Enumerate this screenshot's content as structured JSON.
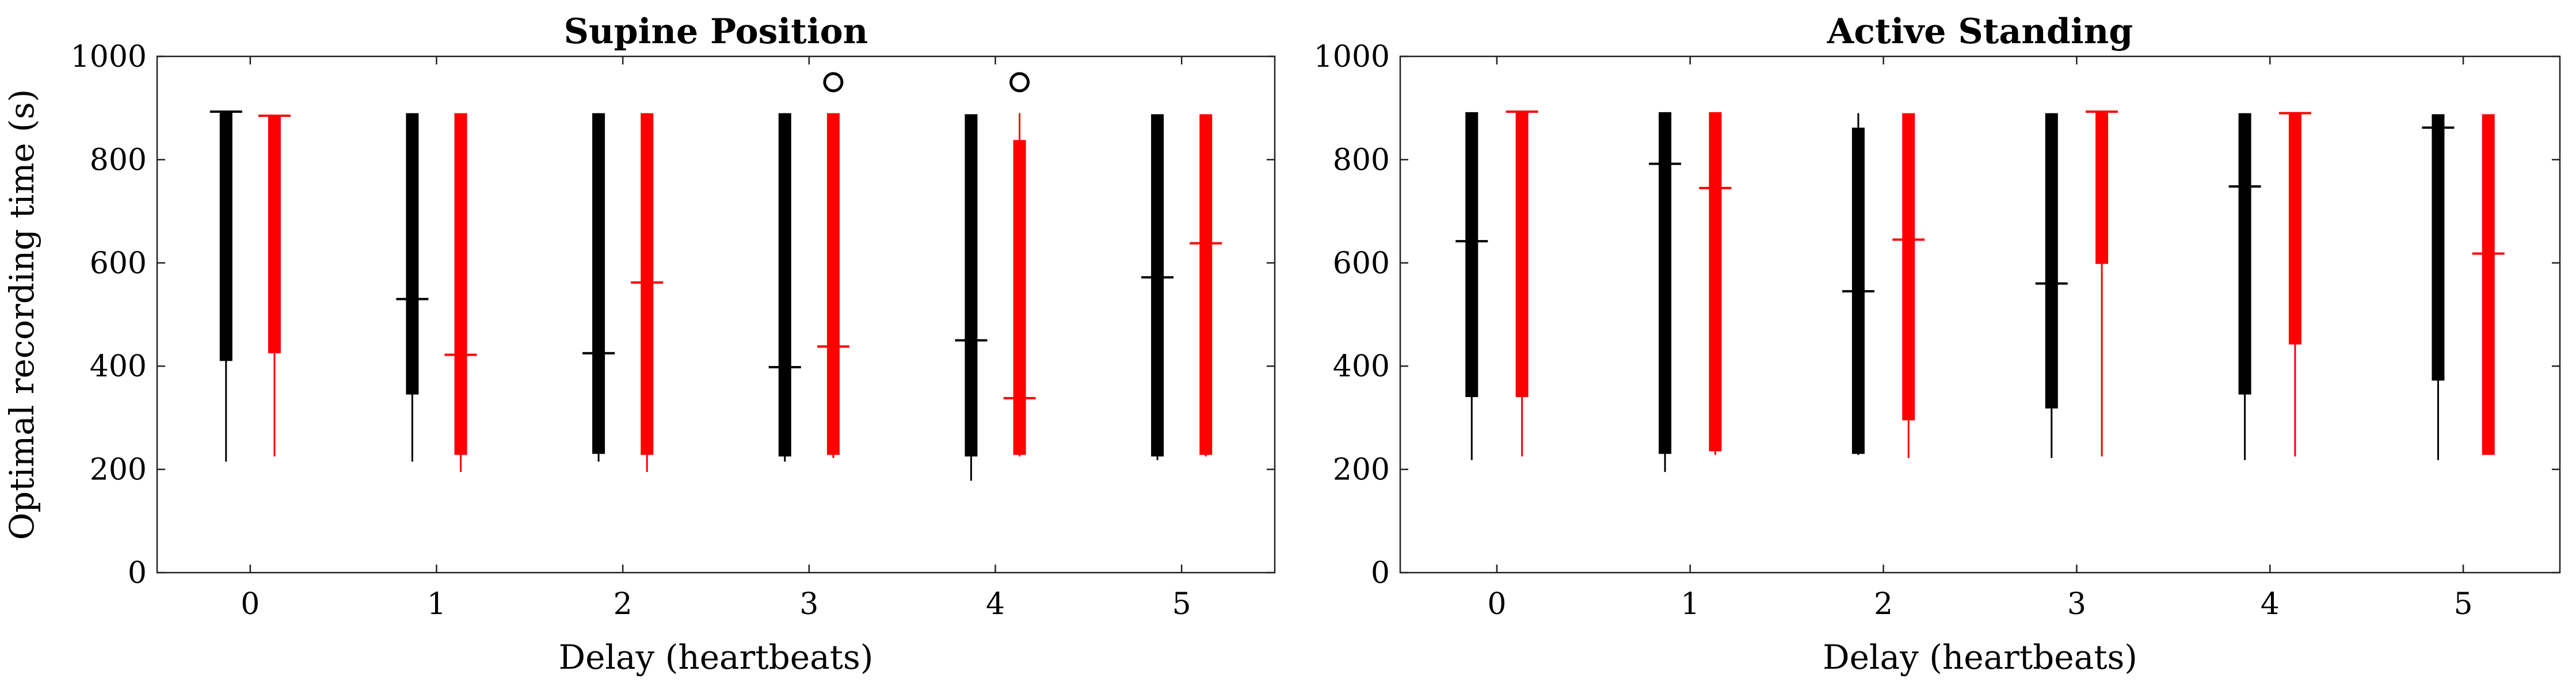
{
  "chart_data": [
    {
      "type": "boxplot",
      "title": "Supine Position",
      "xlabel": "Delay (heartbeats)",
      "ylabel": "Optimal recording time (s)",
      "ylim": [
        0,
        1000
      ],
      "yticks": [
        0,
        200,
        400,
        600,
        800,
        1000
      ],
      "categories": [
        "0",
        "1",
        "2",
        "3",
        "4",
        "5"
      ],
      "grid": false,
      "series": [
        {
          "color": "#000000",
          "boxes": [
            {
              "min": 215,
              "q1": 410,
              "median": 893,
              "q3": 893,
              "max": 893,
              "outliers": []
            },
            {
              "min": 215,
              "q1": 345,
              "median": 530,
              "q3": 890,
              "max": 890,
              "outliers": []
            },
            {
              "min": 215,
              "q1": 230,
              "median": 425,
              "q3": 890,
              "max": 890,
              "outliers": []
            },
            {
              "min": 215,
              "q1": 225,
              "median": 398,
              "q3": 890,
              "max": 890,
              "outliers": []
            },
            {
              "min": 178,
              "q1": 225,
              "median": 450,
              "q3": 888,
              "max": 888,
              "outliers": []
            },
            {
              "min": 218,
              "q1": 225,
              "median": 572,
              "q3": 888,
              "max": 888,
              "outliers": []
            }
          ]
        },
        {
          "color": "#ff0000",
          "boxes": [
            {
              "min": 225,
              "q1": 425,
              "median": 885,
              "q3": 885,
              "max": 885,
              "outliers": []
            },
            {
              "min": 195,
              "q1": 228,
              "median": 422,
              "q3": 890,
              "max": 890,
              "outliers": []
            },
            {
              "min": 195,
              "q1": 228,
              "median": 562,
              "q3": 890,
              "max": 890,
              "outliers": []
            },
            {
              "min": 222,
              "q1": 228,
              "median": 438,
              "q3": 890,
              "max": 890,
              "outliers": [
                950
              ]
            },
            {
              "min": 225,
              "q1": 228,
              "median": 338,
              "q3": 838,
              "max": 890,
              "outliers": [
                950
              ]
            },
            {
              "min": 225,
              "q1": 228,
              "median": 638,
              "q3": 888,
              "max": 888,
              "outliers": []
            }
          ]
        }
      ]
    },
    {
      "type": "boxplot",
      "title": "Active Standing",
      "xlabel": "Delay (heartbeats)",
      "ylabel": "",
      "ylim": [
        0,
        1000
      ],
      "yticks": [
        0,
        200,
        400,
        600,
        800,
        1000
      ],
      "categories": [
        "0",
        "1",
        "2",
        "3",
        "4",
        "5"
      ],
      "grid": false,
      "series": [
        {
          "color": "#000000",
          "boxes": [
            {
              "min": 218,
              "q1": 340,
              "median": 642,
              "q3": 892,
              "max": 892,
              "outliers": []
            },
            {
              "min": 195,
              "q1": 230,
              "median": 792,
              "q3": 892,
              "max": 892,
              "outliers": []
            },
            {
              "min": 228,
              "q1": 230,
              "median": 545,
              "q3": 862,
              "max": 890,
              "outliers": []
            },
            {
              "min": 222,
              "q1": 318,
              "median": 560,
              "q3": 890,
              "max": 890,
              "outliers": []
            },
            {
              "min": 218,
              "q1": 345,
              "median": 748,
              "q3": 890,
              "max": 890,
              "outliers": []
            },
            {
              "min": 218,
              "q1": 372,
              "median": 862,
              "q3": 888,
              "max": 888,
              "outliers": []
            }
          ]
        },
        {
          "color": "#ff0000",
          "boxes": [
            {
              "min": 225,
              "q1": 340,
              "median": 893,
              "q3": 893,
              "max": 893,
              "outliers": []
            },
            {
              "min": 228,
              "q1": 235,
              "median": 745,
              "q3": 892,
              "max": 892,
              "outliers": []
            },
            {
              "min": 222,
              "q1": 295,
              "median": 645,
              "q3": 890,
              "max": 890,
              "outliers": []
            },
            {
              "min": 225,
              "q1": 598,
              "median": 893,
              "q3": 893,
              "max": 893,
              "outliers": []
            },
            {
              "min": 225,
              "q1": 442,
              "median": 890,
              "q3": 890,
              "max": 890,
              "outliers": []
            },
            {
              "min": 228,
              "q1": 228,
              "median": 618,
              "q3": 888,
              "max": 888,
              "outliers": []
            }
          ]
        }
      ]
    }
  ]
}
